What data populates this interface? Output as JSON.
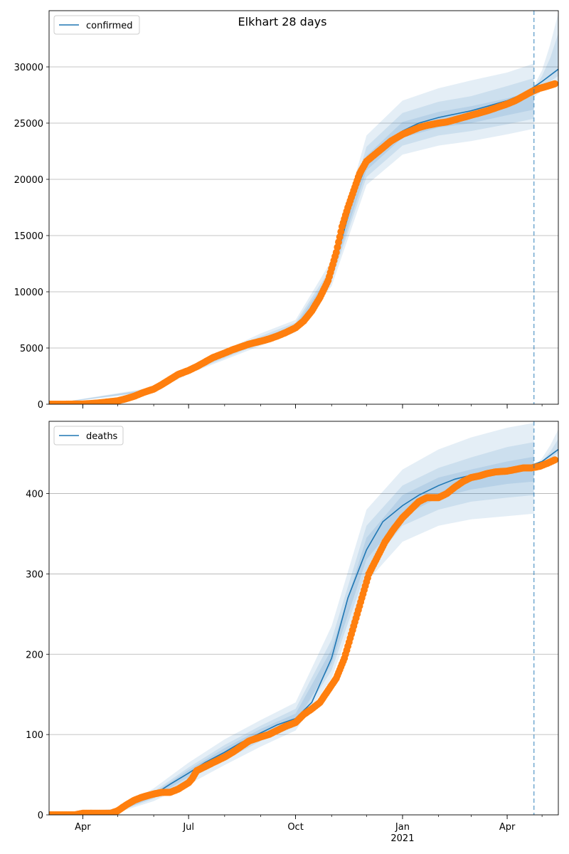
{
  "figure": {
    "title": "Elkhart 28 days"
  },
  "x_axis": {
    "tick_labels": [
      "Apr",
      "Jul",
      "Oct",
      "Jan",
      "Apr"
    ],
    "tick_dates": [
      "2020-04-01",
      "2020-07-01",
      "2020-10-01",
      "2021-01-01",
      "2021-04-01"
    ],
    "year_label": "2021",
    "range": [
      "2020-03-03",
      "2021-05-15"
    ]
  },
  "chart_data": [
    {
      "type": "line",
      "legend": "confirmed",
      "legend_position": "upper-left",
      "grid": "y-only",
      "ylim": [
        0,
        35000
      ],
      "yticks": [
        0,
        5000,
        10000,
        15000,
        20000,
        25000,
        30000
      ],
      "forecast_start": "2021-04-24",
      "model_line": {
        "x": [
          "2020-03-03",
          "2020-04-01",
          "2020-04-15",
          "2020-05-01",
          "2020-05-15",
          "2020-06-01",
          "2020-06-15",
          "2020-07-01",
          "2020-07-15",
          "2020-08-01",
          "2020-08-15",
          "2020-09-01",
          "2020-09-15",
          "2020-10-01",
          "2020-10-15",
          "2020-11-01",
          "2020-11-10",
          "2020-11-20",
          "2020-12-01",
          "2020-12-15",
          "2021-01-01",
          "2021-01-15",
          "2021-02-01",
          "2021-02-15",
          "2021-03-01",
          "2021-03-15",
          "2021-04-01",
          "2021-04-15",
          "2021-05-01",
          "2021-05-15"
        ],
        "y": [
          0,
          30,
          100,
          300,
          650,
          1300,
          2100,
          3000,
          3800,
          4600,
          5100,
          5700,
          6200,
          6900,
          8300,
          11500,
          14800,
          18500,
          21300,
          23000,
          24300,
          25000,
          25500,
          25800,
          26100,
          26500,
          27000,
          27600,
          28700,
          29800
        ]
      },
      "bands": [
        {
          "x": [
            "2020-03-03",
            "2020-06-01",
            "2020-07-01",
            "2020-09-01",
            "2020-10-01",
            "2020-11-01",
            "2020-12-01",
            "2021-01-01",
            "2021-02-01",
            "2021-03-01",
            "2021-04-01",
            "2021-04-24"
          ],
          "low": [
            0,
            1100,
            2700,
            5200,
            6400,
            10500,
            19500,
            22200,
            23000,
            23400,
            24000,
            24500
          ],
          "high": [
            0,
            1500,
            3300,
            6300,
            7500,
            12800,
            23900,
            27000,
            28100,
            28800,
            29500,
            30300
          ]
        },
        {
          "x": [
            "2020-03-03",
            "2020-06-01",
            "2020-07-01",
            "2020-09-01",
            "2020-10-01",
            "2020-11-01",
            "2020-12-01",
            "2021-01-01",
            "2021-02-01",
            "2021-03-01",
            "2021-04-01",
            "2021-04-24"
          ],
          "low": [
            0,
            1180,
            2800,
            5400,
            6600,
            11000,
            20200,
            23000,
            23900,
            24300,
            24900,
            25400
          ],
          "high": [
            0,
            1420,
            3200,
            6050,
            7250,
            12200,
            22900,
            25900,
            26900,
            27400,
            28300,
            29000
          ]
        },
        {
          "x": [
            "2020-03-03",
            "2020-06-01",
            "2020-07-01",
            "2020-09-01",
            "2020-10-01",
            "2020-11-01",
            "2020-12-01",
            "2021-01-01",
            "2021-02-01",
            "2021-03-01",
            "2021-04-01",
            "2021-04-24"
          ],
          "low": [
            0,
            1240,
            2880,
            5550,
            6750,
            11300,
            20800,
            23700,
            24600,
            25000,
            25700,
            26200
          ],
          "high": [
            0,
            1360,
            3120,
            5850,
            7050,
            11800,
            22100,
            25100,
            26000,
            26500,
            27200,
            27900
          ]
        }
      ],
      "forecast_bands": [
        {
          "x": [
            "2021-04-24",
            "2021-05-01",
            "2021-05-08",
            "2021-05-15"
          ],
          "low": [
            27300,
            27900,
            28300,
            28700
          ],
          "high": [
            28300,
            29700,
            32000,
            34800
          ]
        },
        {
          "x": [
            "2021-04-24",
            "2021-05-01",
            "2021-05-08",
            "2021-05-15"
          ],
          "low": [
            27500,
            28100,
            28700,
            29200
          ],
          "high": [
            28000,
            29200,
            30800,
            33000
          ]
        }
      ],
      "observed": {
        "x": [
          "2020-03-03",
          "2020-03-15",
          "2020-04-01",
          "2020-04-08",
          "2020-04-15",
          "2020-04-22",
          "2020-05-01",
          "2020-05-08",
          "2020-05-15",
          "2020-05-22",
          "2020-06-01",
          "2020-06-08",
          "2020-06-15",
          "2020-06-22",
          "2020-07-01",
          "2020-07-08",
          "2020-07-15",
          "2020-07-22",
          "2020-08-01",
          "2020-08-08",
          "2020-08-15",
          "2020-08-22",
          "2020-09-01",
          "2020-09-08",
          "2020-09-15",
          "2020-09-22",
          "2020-10-01",
          "2020-10-08",
          "2020-10-15",
          "2020-10-22",
          "2020-10-29",
          "2020-11-05",
          "2020-11-10",
          "2020-11-15",
          "2020-11-20",
          "2020-11-25",
          "2020-12-01",
          "2020-12-08",
          "2020-12-15",
          "2020-12-22",
          "2021-01-01",
          "2021-01-08",
          "2021-01-15",
          "2021-01-22",
          "2021-02-01",
          "2021-02-08",
          "2021-02-15",
          "2021-02-22",
          "2021-03-01",
          "2021-03-08",
          "2021-03-15",
          "2021-03-22",
          "2021-04-01",
          "2021-04-08",
          "2021-04-15",
          "2021-04-22",
          "2021-04-29",
          "2021-05-06",
          "2021-05-12"
        ],
        "y": [
          0,
          0,
          20,
          60,
          120,
          200,
          300,
          480,
          700,
          1000,
          1350,
          1750,
          2200,
          2650,
          3000,
          3350,
          3750,
          4150,
          4550,
          4850,
          5100,
          5350,
          5600,
          5800,
          6050,
          6350,
          6800,
          7400,
          8300,
          9500,
          11000,
          13500,
          15800,
          17500,
          19000,
          20500,
          21600,
          22200,
          22800,
          23400,
          24000,
          24300,
          24600,
          24800,
          25000,
          25100,
          25300,
          25500,
          25700,
          25900,
          26100,
          26350,
          26700,
          27000,
          27400,
          27800,
          28100,
          28300,
          28500
        ]
      }
    },
    {
      "type": "line",
      "legend": "deaths",
      "legend_position": "upper-left",
      "grid": "y-only",
      "ylim": [
        0,
        490
      ],
      "yticks": [
        0,
        100,
        200,
        300,
        400
      ],
      "forecast_start": "2021-04-24",
      "model_line": {
        "x": [
          "2020-03-03",
          "2020-04-01",
          "2020-04-15",
          "2020-05-01",
          "2020-05-15",
          "2020-06-01",
          "2020-06-15",
          "2020-07-01",
          "2020-07-15",
          "2020-08-01",
          "2020-08-15",
          "2020-09-01",
          "2020-09-15",
          "2020-10-01",
          "2020-10-15",
          "2020-11-01",
          "2020-11-15",
          "2020-12-01",
          "2020-12-15",
          "2021-01-01",
          "2021-01-15",
          "2021-02-01",
          "2021-02-15",
          "2021-03-01",
          "2021-03-15",
          "2021-04-01",
          "2021-04-15",
          "2021-05-01",
          "2021-05-15"
        ],
        "y": [
          0,
          1,
          2,
          5,
          15,
          25,
          38,
          52,
          65,
          78,
          90,
          102,
          112,
          120,
          140,
          195,
          270,
          330,
          365,
          385,
          398,
          410,
          418,
          423,
          426,
          429,
          432,
          440,
          455
        ]
      },
      "bands": [
        {
          "x": [
            "2020-03-03",
            "2020-05-01",
            "2020-06-01",
            "2020-07-01",
            "2020-08-01",
            "2020-09-01",
            "2020-10-01",
            "2020-11-01",
            "2020-12-01",
            "2021-01-01",
            "2021-02-01",
            "2021-03-01",
            "2021-04-01",
            "2021-04-24"
          ],
          "low": [
            0,
            3,
            17,
            38,
            62,
            85,
            105,
            170,
            290,
            340,
            360,
            368,
            372,
            375
          ],
          "high": [
            0,
            8,
            33,
            65,
            94,
            118,
            140,
            235,
            380,
            430,
            455,
            470,
            482,
            488
          ]
        },
        {
          "x": [
            "2020-03-03",
            "2020-05-01",
            "2020-06-01",
            "2020-07-01",
            "2020-08-01",
            "2020-09-01",
            "2020-10-01",
            "2020-11-01",
            "2020-12-01",
            "2021-01-01",
            "2021-02-01",
            "2021-03-01",
            "2021-04-01",
            "2021-04-24"
          ],
          "low": [
            0,
            4,
            20,
            44,
            68,
            92,
            110,
            180,
            305,
            360,
            380,
            390,
            395,
            398
          ],
          "high": [
            0,
            6,
            29,
            59,
            87,
            111,
            132,
            218,
            360,
            410,
            432,
            445,
            458,
            464
          ]
        },
        {
          "x": [
            "2020-03-03",
            "2020-05-01",
            "2020-06-01",
            "2020-07-01",
            "2020-08-01",
            "2020-09-01",
            "2020-10-01",
            "2020-11-01",
            "2020-12-01",
            "2021-01-01",
            "2021-02-01",
            "2021-03-01",
            "2021-04-01",
            "2021-04-24"
          ],
          "low": [
            0,
            4,
            22,
            47,
            72,
            96,
            114,
            188,
            318,
            372,
            395,
            405,
            412,
            415
          ],
          "high": [
            0,
            6,
            27,
            56,
            83,
            107,
            126,
            206,
            345,
            398,
            420,
            430,
            440,
            446
          ]
        }
      ],
      "forecast_bands": [
        {
          "x": [
            "2021-04-24",
            "2021-05-01",
            "2021-05-08",
            "2021-05-15"
          ],
          "low": [
            429,
            433,
            440,
            447
          ],
          "high": [
            434,
            444,
            460,
            480
          ]
        },
        {
          "x": [
            "2021-04-24",
            "2021-05-01",
            "2021-05-08",
            "2021-05-15"
          ],
          "low": [
            430,
            435,
            443,
            451
          ],
          "high": [
            433,
            440,
            452,
            468
          ]
        }
      ],
      "observed": {
        "x": [
          "2020-03-03",
          "2020-03-25",
          "2020-04-01",
          "2020-04-15",
          "2020-04-25",
          "2020-05-01",
          "2020-05-08",
          "2020-05-15",
          "2020-05-22",
          "2020-06-01",
          "2020-06-08",
          "2020-06-15",
          "2020-06-22",
          "2020-07-01",
          "2020-07-04",
          "2020-07-08",
          "2020-07-15",
          "2020-07-22",
          "2020-08-01",
          "2020-08-08",
          "2020-08-15",
          "2020-08-22",
          "2020-09-01",
          "2020-09-08",
          "2020-09-15",
          "2020-09-22",
          "2020-10-01",
          "2020-10-08",
          "2020-10-15",
          "2020-10-22",
          "2020-10-29",
          "2020-11-05",
          "2020-11-12",
          "2020-11-19",
          "2020-11-26",
          "2020-12-03",
          "2020-12-10",
          "2020-12-17",
          "2020-12-24",
          "2021-01-01",
          "2021-01-08",
          "2021-01-15",
          "2021-01-22",
          "2021-02-01",
          "2021-02-08",
          "2021-02-15",
          "2021-02-22",
          "2021-03-01",
          "2021-03-08",
          "2021-03-15",
          "2021-03-22",
          "2021-04-01",
          "2021-04-08",
          "2021-04-15",
          "2021-04-22",
          "2021-04-29",
          "2021-05-06",
          "2021-05-12"
        ],
        "y": [
          0,
          0,
          2,
          2,
          2,
          5,
          12,
          18,
          22,
          26,
          28,
          28,
          32,
          40,
          45,
          55,
          60,
          65,
          72,
          78,
          85,
          92,
          97,
          100,
          105,
          110,
          115,
          125,
          132,
          140,
          155,
          170,
          195,
          230,
          265,
          300,
          320,
          340,
          355,
          370,
          380,
          390,
          395,
          395,
          400,
          408,
          415,
          420,
          422,
          425,
          427,
          428,
          430,
          432,
          432,
          434,
          438,
          442
        ]
      }
    }
  ]
}
